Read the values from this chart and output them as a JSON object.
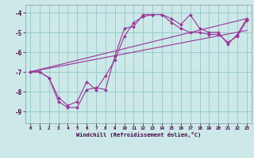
{
  "xlabel": "Windchill (Refroidissement éolien,°C)",
  "bg_color": "#cce8e8",
  "grid_color": "#99cccc",
  "line_color": "#993399",
  "marker_color": "#993399",
  "xlim": [
    -0.5,
    23.5
  ],
  "ylim": [
    -9.6,
    -3.6
  ],
  "yticks": [
    -9,
    -8,
    -7,
    -6,
    -5,
    -4
  ],
  "xticks": [
    0,
    1,
    2,
    3,
    4,
    5,
    6,
    7,
    8,
    9,
    10,
    11,
    12,
    13,
    14,
    15,
    16,
    17,
    18,
    19,
    20,
    21,
    22,
    23
  ],
  "lines": [
    {
      "x": [
        0,
        1,
        2,
        3,
        4,
        5,
        6,
        7,
        8,
        9,
        10,
        11,
        12,
        13,
        14,
        15,
        16,
        17,
        18,
        19,
        20,
        21,
        22,
        23
      ],
      "y": [
        -7.0,
        -7.0,
        -7.3,
        -8.5,
        -8.8,
        -8.8,
        -7.9,
        -7.8,
        -7.9,
        -6.2,
        -4.8,
        -4.7,
        -4.1,
        -4.1,
        -4.1,
        -4.3,
        -4.6,
        -4.1,
        -4.8,
        -5.0,
        -5.0,
        -5.6,
        -5.1,
        -4.3
      ],
      "has_markers": true
    },
    {
      "x": [
        0,
        1,
        2,
        3,
        4,
        5,
        6,
        7,
        8,
        9,
        10,
        11,
        12,
        13,
        14,
        15,
        16,
        17,
        18,
        19,
        20,
        21,
        22,
        23
      ],
      "y": [
        -7.0,
        -7.0,
        -7.3,
        -8.3,
        -8.7,
        -8.5,
        -7.5,
        -7.9,
        -7.2,
        -6.4,
        -5.2,
        -4.5,
        -4.2,
        -4.1,
        -4.1,
        -4.5,
        -4.8,
        -5.0,
        -5.0,
        -5.1,
        -5.1,
        -5.5,
        -5.2,
        -4.4
      ],
      "has_markers": true
    },
    {
      "x": [
        0,
        23
      ],
      "y": [
        -7.0,
        -4.3
      ],
      "has_markers": false
    },
    {
      "x": [
        0,
        23
      ],
      "y": [
        -7.0,
        -4.9
      ],
      "has_markers": false
    }
  ]
}
